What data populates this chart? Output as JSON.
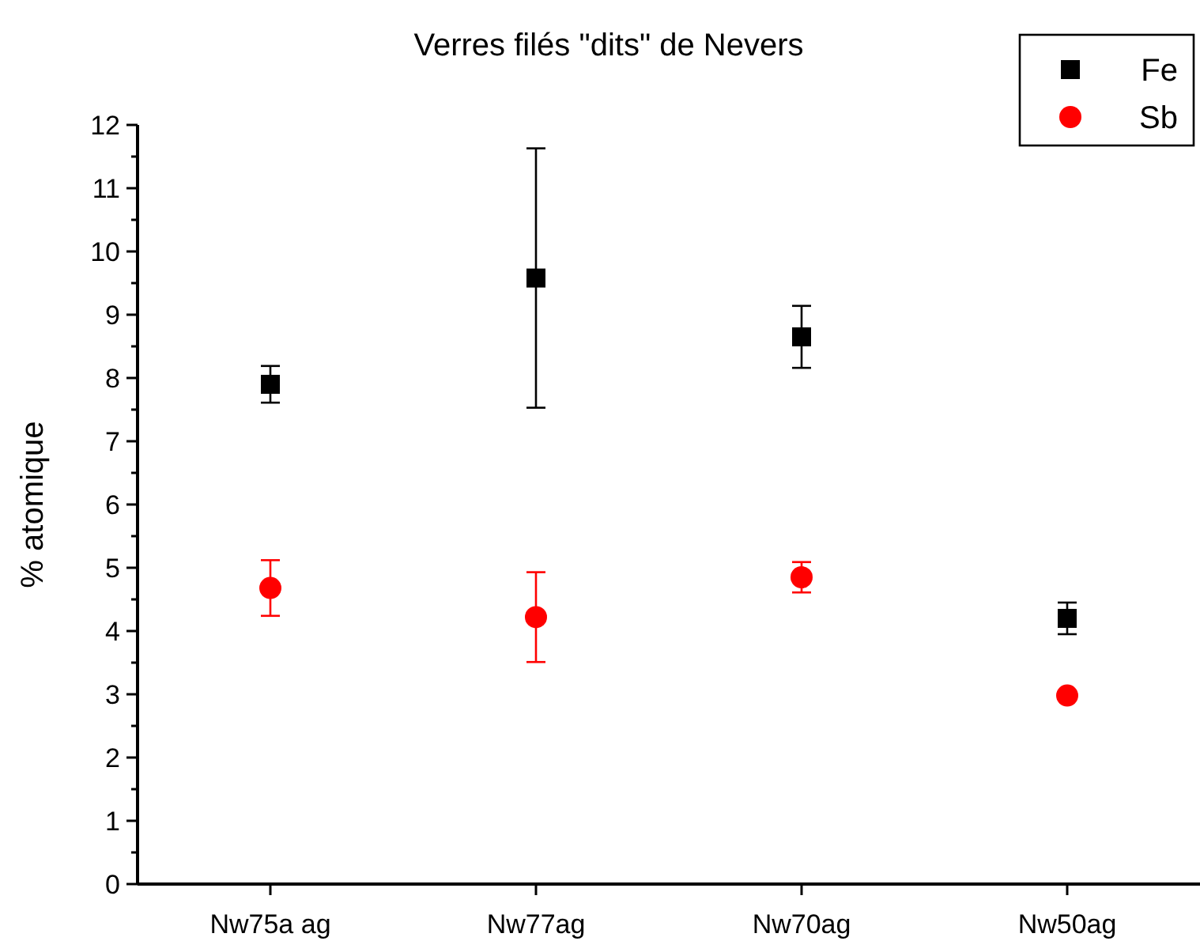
{
  "chart_data": {
    "type": "scatter",
    "title": "Verres filés \"dits\" de Nevers",
    "ylabel": "% atomique",
    "categories": [
      "Nw75a ag",
      "Nw77ag",
      "Nw70ag",
      "Nw50ag"
    ],
    "series": [
      {
        "name": "Fe",
        "color": "#000000",
        "marker": "square",
        "values": [
          7.9,
          9.58,
          8.65,
          4.2
        ],
        "errors": [
          0.29,
          2.05,
          0.49,
          0.25
        ]
      },
      {
        "name": "Sb",
        "color": "#ff0000",
        "marker": "circle",
        "values": [
          4.68,
          4.22,
          4.85,
          2.98
        ],
        "errors": [
          0.44,
          0.71,
          0.24,
          null
        ]
      }
    ],
    "ylim": [
      0,
      12
    ],
    "yticks": [
      0,
      {
        "value": 0.5,
        "label": null
      },
      1,
      {
        "value": 1.5,
        "label": null
      },
      2,
      {
        "value": 2.5,
        "label": null
      },
      3,
      {
        "value": 3.5,
        "label": null
      },
      4,
      {
        "value": 4.5,
        "label": null
      },
      5,
      {
        "value": 5.5,
        "label": null
      },
      6,
      {
        "value": 6.5,
        "label": null
      },
      7,
      {
        "value": 7.5,
        "label": null
      },
      8,
      {
        "value": 8.5,
        "label": null
      },
      9,
      {
        "value": 9.5,
        "label": null
      },
      10,
      {
        "value": 10.5,
        "label": null
      },
      11,
      {
        "value": 11.5,
        "label": null
      },
      12
    ],
    "grid": false,
    "legend": "top right"
  }
}
